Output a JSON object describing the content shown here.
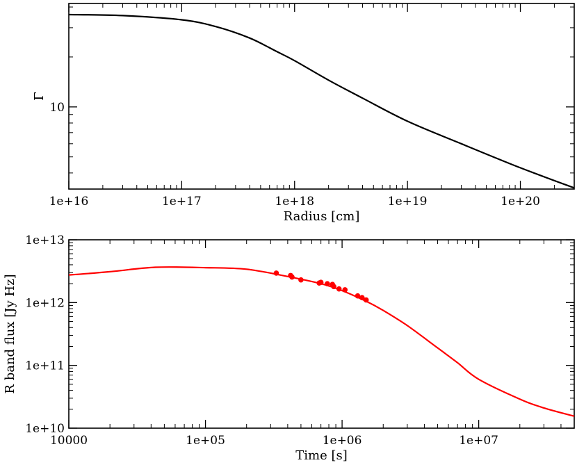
{
  "chart_data": [
    {
      "type": "line",
      "title": "",
      "xlabel": "Radius [cm]",
      "ylabel": "Γ",
      "xscale": "log",
      "yscale": "log",
      "xlim": [
        1e+16,
        3e+20
      ],
      "ylim": [
        3.2,
        42
      ],
      "grid": false,
      "legend": "none",
      "color": "#000000",
      "xticks": [
        {
          "value": 1e+16,
          "label": "1e+16"
        },
        {
          "value": 1e+17,
          "label": "1e+17"
        },
        {
          "value": 1e+18,
          "label": "1e+18"
        },
        {
          "value": 1e+19,
          "label": "1e+19"
        },
        {
          "value": 1e+20,
          "label": "1e+20"
        }
      ],
      "yticks": [
        {
          "value": 10,
          "label": "10"
        }
      ],
      "series": [
        {
          "x": [
            1e+16,
            3e+16,
            1e+17,
            2e+17,
            4e+17,
            7e+17,
            1e+18,
            2e+18,
            4e+18,
            1e+19,
            3e+19,
            1e+20,
            3e+20
          ],
          "y": [
            36,
            35.5,
            33.5,
            30.5,
            26,
            21.5,
            19,
            14.5,
            11.3,
            8.2,
            6.0,
            4.3,
            3.25
          ]
        }
      ]
    },
    {
      "type": "line",
      "title": "",
      "xlabel": "Time [s]",
      "ylabel": "R band flux [Jy Hz]",
      "xscale": "log",
      "yscale": "log",
      "xlim": [
        10000.0,
        50000000.0
      ],
      "ylim": [
        10000000000.0,
        10000000000000.0
      ],
      "grid": false,
      "legend": "none",
      "color": "#ff0000",
      "xticks": [
        {
          "value": 10000.0,
          "label": "10000"
        },
        {
          "value": 100000.0,
          "label": "1e+05"
        },
        {
          "value": 1000000.0,
          "label": "1e+06"
        },
        {
          "value": 10000000.0,
          "label": "1e+07"
        }
      ],
      "yticks": [
        {
          "value": 10000000000.0,
          "label": "1e+10"
        },
        {
          "value": 100000000000.0,
          "label": "1e+11"
        },
        {
          "value": 1000000000000.0,
          "label": "1e+12"
        },
        {
          "value": 10000000000000.0,
          "label": "1e+13"
        }
      ],
      "series": [
        {
          "kind": "model",
          "x": [
            10000.0,
            20000.0,
            43000.0,
            100000.0,
            200000.0,
            400000.0,
            700000.0,
            1000000.0,
            1500000.0,
            2000000.0,
            3000000.0,
            5000000.0,
            7000000.0,
            10000000.0,
            20000000.0,
            30000000.0,
            50000000.0
          ],
          "y": [
            2750000000000.0,
            3100000000000.0,
            3650000000000.0,
            3600000000000.0,
            3400000000000.0,
            2600000000000.0,
            2000000000000.0,
            1550000000000.0,
            1050000000000.0,
            750000000000.0,
            430000000000.0,
            190000000000.0,
            110000000000.0,
            60000000000.0,
            29000000000.0,
            21000000000.0,
            15500000000.0
          ]
        },
        {
          "kind": "observed",
          "x": [
            330000.0,
            420000.0,
            430000.0,
            500000.0,
            680000.0,
            700000.0,
            780000.0,
            850000.0,
            870000.0,
            950000.0,
            1050000.0,
            1300000.0,
            1400000.0,
            1500000.0
          ],
          "y": [
            2950000000000.0,
            2700000000000.0,
            2550000000000.0,
            2300000000000.0,
            2050000000000.0,
            2100000000000.0,
            2000000000000.0,
            1950000000000.0,
            1800000000000.0,
            1650000000000.0,
            1600000000000.0,
            1280000000000.0,
            1200000000000.0,
            1100000000000.0
          ]
        }
      ]
    }
  ]
}
